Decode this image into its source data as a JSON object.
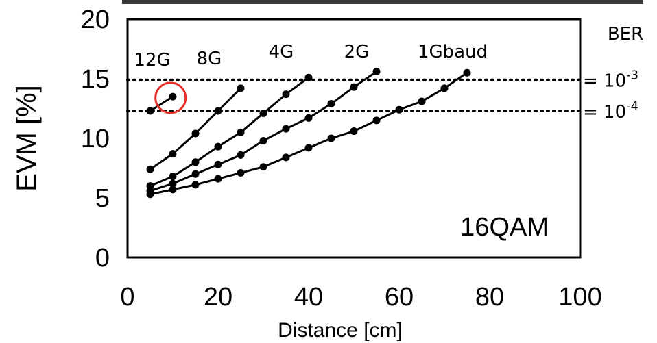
{
  "chart_data": {
    "type": "line",
    "xlabel": "Distance [cm]",
    "ylabel": "EVM [%]",
    "xlim": [
      0,
      100
    ],
    "ylim": [
      0,
      20
    ],
    "xticks": [
      0,
      20,
      40,
      60,
      80,
      100
    ],
    "yticks": [
      0,
      5,
      10,
      15,
      20
    ],
    "grid": false,
    "modulation_label": "16QAM",
    "series": [
      {
        "name": "12G",
        "x": [
          5,
          10
        ],
        "y": [
          12.3,
          13.5
        ]
      },
      {
        "name": "8G",
        "x": [
          5,
          10,
          15,
          20,
          25
        ],
        "y": [
          7.4,
          8.7,
          10.4,
          12.3,
          14.2
        ]
      },
      {
        "name": "4G",
        "x": [
          5,
          10,
          15,
          20,
          25,
          30,
          35,
          40
        ],
        "y": [
          6.0,
          6.8,
          8.0,
          9.3,
          10.5,
          12.1,
          13.7,
          15.1
        ]
      },
      {
        "name": "2G",
        "x": [
          5,
          10,
          15,
          20,
          25,
          30,
          35,
          40,
          45,
          50,
          55
        ],
        "y": [
          5.6,
          6.2,
          7.0,
          7.8,
          8.6,
          9.8,
          10.8,
          11.7,
          12.9,
          14.3,
          15.6
        ]
      },
      {
        "name": "1Gbaud",
        "x": [
          5,
          10,
          15,
          20,
          25,
          30,
          35,
          40,
          45,
          50,
          55,
          60,
          65,
          70,
          75
        ],
        "y": [
          5.3,
          5.7,
          6.1,
          6.6,
          7.1,
          7.6,
          8.4,
          9.2,
          10.0,
          10.6,
          11.5,
          12.4,
          13.1,
          14.2,
          15.5
        ]
      }
    ],
    "thresholds": [
      {
        "y": 14.9,
        "label_prefix": "= 10",
        "label_exp": "-3"
      },
      {
        "y": 12.3,
        "label_prefix": "= 10",
        "label_exp": "-4"
      }
    ],
    "ber_title": "BER",
    "highlight": {
      "x": 9.5,
      "y": 13.4,
      "color": "#e8302a"
    },
    "line_color": "#000000"
  }
}
